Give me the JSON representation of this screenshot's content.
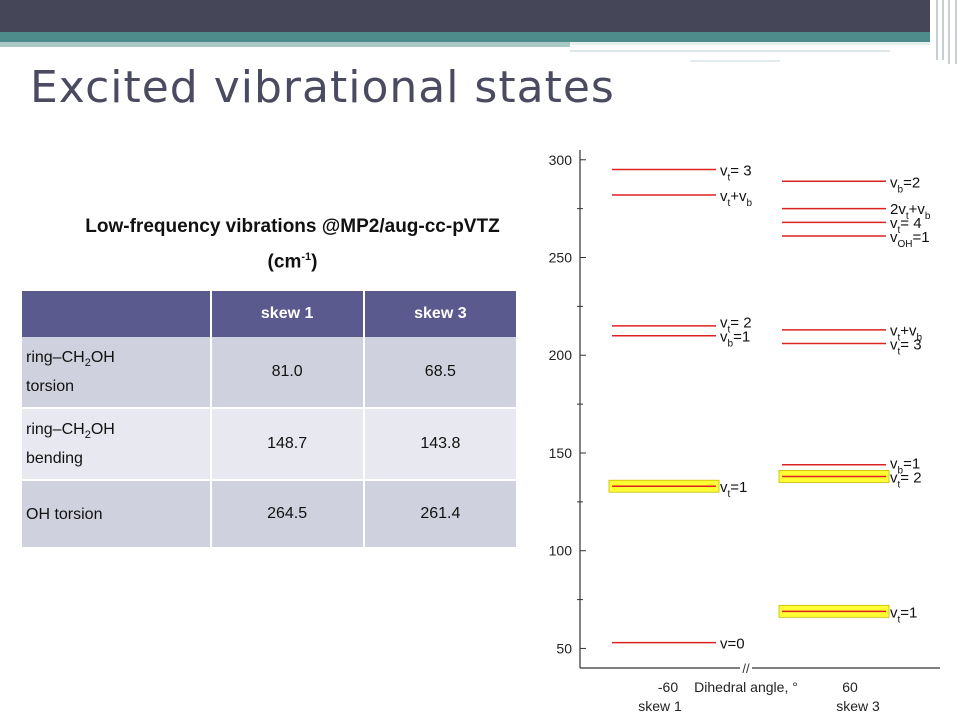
{
  "slide": {
    "title": "Excited vibrational states",
    "table_caption": "Low-frequency vibrations @MP2/aug-cc-pVTZ",
    "table_unit_open": "(cm",
    "table_unit_sup": "-1",
    "table_unit_close": ")"
  },
  "table": {
    "headers": [
      "",
      "skew 1",
      "skew 3"
    ],
    "rows": [
      {
        "pre": "ring–CH",
        "sub": "2",
        "post": "OH",
        "line2": "torsion",
        "skew1": "81.0",
        "skew3": "68.5"
      },
      {
        "pre": "ring–CH",
        "sub": "2",
        "post": "OH",
        "line2": "bending",
        "skew1": "148.7",
        "skew3": "143.8"
      },
      {
        "pre": "OH torsion",
        "sub": "",
        "post": "",
        "line2": "",
        "skew1": "264.5",
        "skew3": "261.4"
      }
    ]
  },
  "chart_data": {
    "type": "energy-level diagram",
    "ylim": [
      40,
      305
    ],
    "yticks": [
      50,
      100,
      150,
      200,
      250,
      300
    ],
    "minor_ticks": true,
    "xlabel": "Dihedral angle, °",
    "axis_break": "//",
    "columns": [
      {
        "x_tick": "-60",
        "name": "skew 1",
        "levels": [
          {
            "y": 53,
            "label": "v=0",
            "highlight": false
          },
          {
            "y": 133,
            "label": "vt=1",
            "highlight": true
          },
          {
            "y": 210,
            "label": "vb=1",
            "highlight": false
          },
          {
            "y": 215,
            "label": "vt= 2",
            "highlight": false
          },
          {
            "y": 282,
            "label": "vt+vb",
            "highlight": false
          },
          {
            "y": 295,
            "label": "vt= 3",
            "highlight": false
          }
        ]
      },
      {
        "x_tick": "60",
        "name": "skew 3",
        "levels": [
          {
            "y": 69,
            "label": "vt=1",
            "highlight": true
          },
          {
            "y": 138,
            "label": "vt= 2",
            "highlight": true
          },
          {
            "y": 144,
            "label": "vb=1",
            "highlight": false
          },
          {
            "y": 206,
            "label": "vt= 3",
            "highlight": false
          },
          {
            "y": 213,
            "label": "vt+vb",
            "highlight": false
          },
          {
            "y": 261,
            "label": "vOH=1",
            "highlight": false
          },
          {
            "y": 268,
            "label": "vt= 4",
            "highlight": false
          },
          {
            "y": 275,
            "label": "2vt+vb",
            "highlight": false
          },
          {
            "y": 289,
            "label": "vb=2",
            "highlight": false
          }
        ]
      }
    ],
    "colors": {
      "level": "#dd2222",
      "highlight": "#ffff33",
      "axis": "#333333"
    }
  }
}
